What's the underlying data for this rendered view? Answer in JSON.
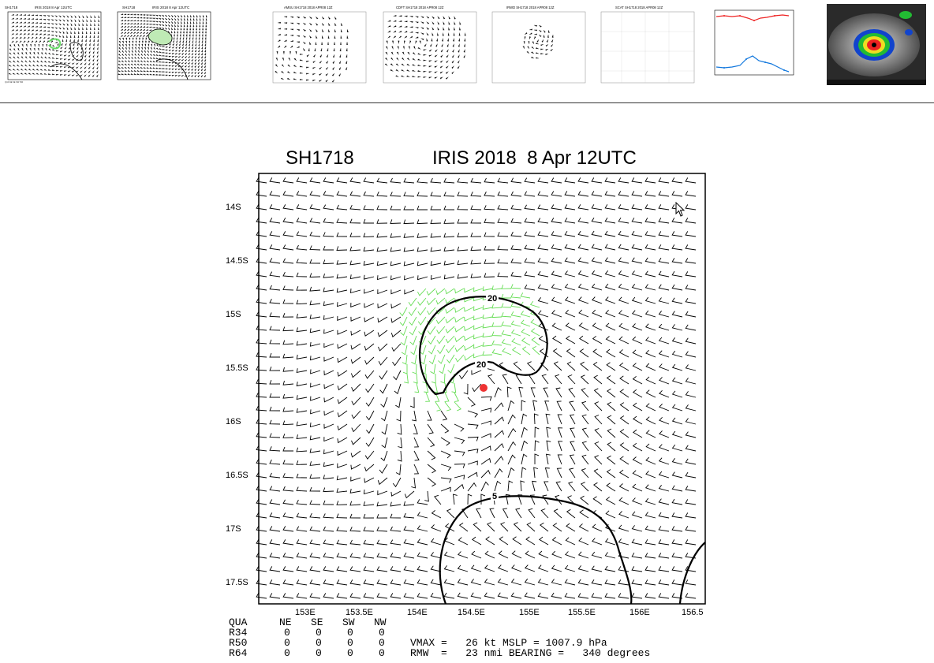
{
  "thumbnails": [
    {
      "id": "t1",
      "label": "SH1718",
      "sub": "IRIS 2018   8 Apr 12UTC",
      "kind": "windfield"
    },
    {
      "id": "t2",
      "label": "SH1718",
      "sub": "IRIS 2018   8 Apr 12UTC",
      "kind": "windfield-dense"
    },
    {
      "id": "t3",
      "label": "AMSU SH1718 2018 APR08 12Z",
      "sub": "",
      "kind": "map"
    },
    {
      "id": "t4",
      "label": "CDFT SH1718 2018 APR08 12Z",
      "sub": "",
      "kind": "map"
    },
    {
      "id": "t5",
      "label": "IRWD SH1718 2018 APR08 12Z",
      "sub": "",
      "kind": "map-sparse"
    },
    {
      "id": "t6",
      "label": "SCAT SH1718 2018 APR08 12Z",
      "sub": "",
      "kind": "map-empty"
    },
    {
      "id": "t7",
      "label": "",
      "sub": "",
      "kind": "timeseries"
    },
    {
      "id": "t8",
      "label": "",
      "sub": "",
      "kind": "satellite"
    }
  ],
  "main": {
    "storm_id": "SH1718",
    "title": "IRIS 2018  8 Apr 12UTC",
    "lat_ticks": [
      "14S",
      "14.5S",
      "15S",
      "15.5S",
      "16S",
      "16.5S",
      "17S",
      "17.5S"
    ],
    "lon_ticks": [
      "153E",
      "153.5E",
      "154E",
      "154.5E",
      "155E",
      "155.5E",
      "156E",
      "156.5"
    ],
    "contour_labels": [
      "20",
      "20",
      "5"
    ],
    "colors": {
      "barbs": "#000000",
      "strong_barbs": "#66dd55",
      "center": "#ee3333"
    }
  },
  "table": {
    "header": [
      "QUA",
      "NE",
      "SE",
      "SW",
      "NW"
    ],
    "rows": [
      {
        "name": "R34",
        "values": [
          "0",
          "0",
          "0",
          "0"
        ]
      },
      {
        "name": "R50",
        "values": [
          "0",
          "0",
          "0",
          "0"
        ]
      },
      {
        "name": "R64",
        "values": [
          "0",
          "0",
          "0",
          "0"
        ]
      }
    ],
    "vmax_line": "VMAX =   26 kt MSLP = 1007.9 hPa",
    "rmw_line": "RMW  =   23 nmi BEARING =   340 degrees"
  }
}
